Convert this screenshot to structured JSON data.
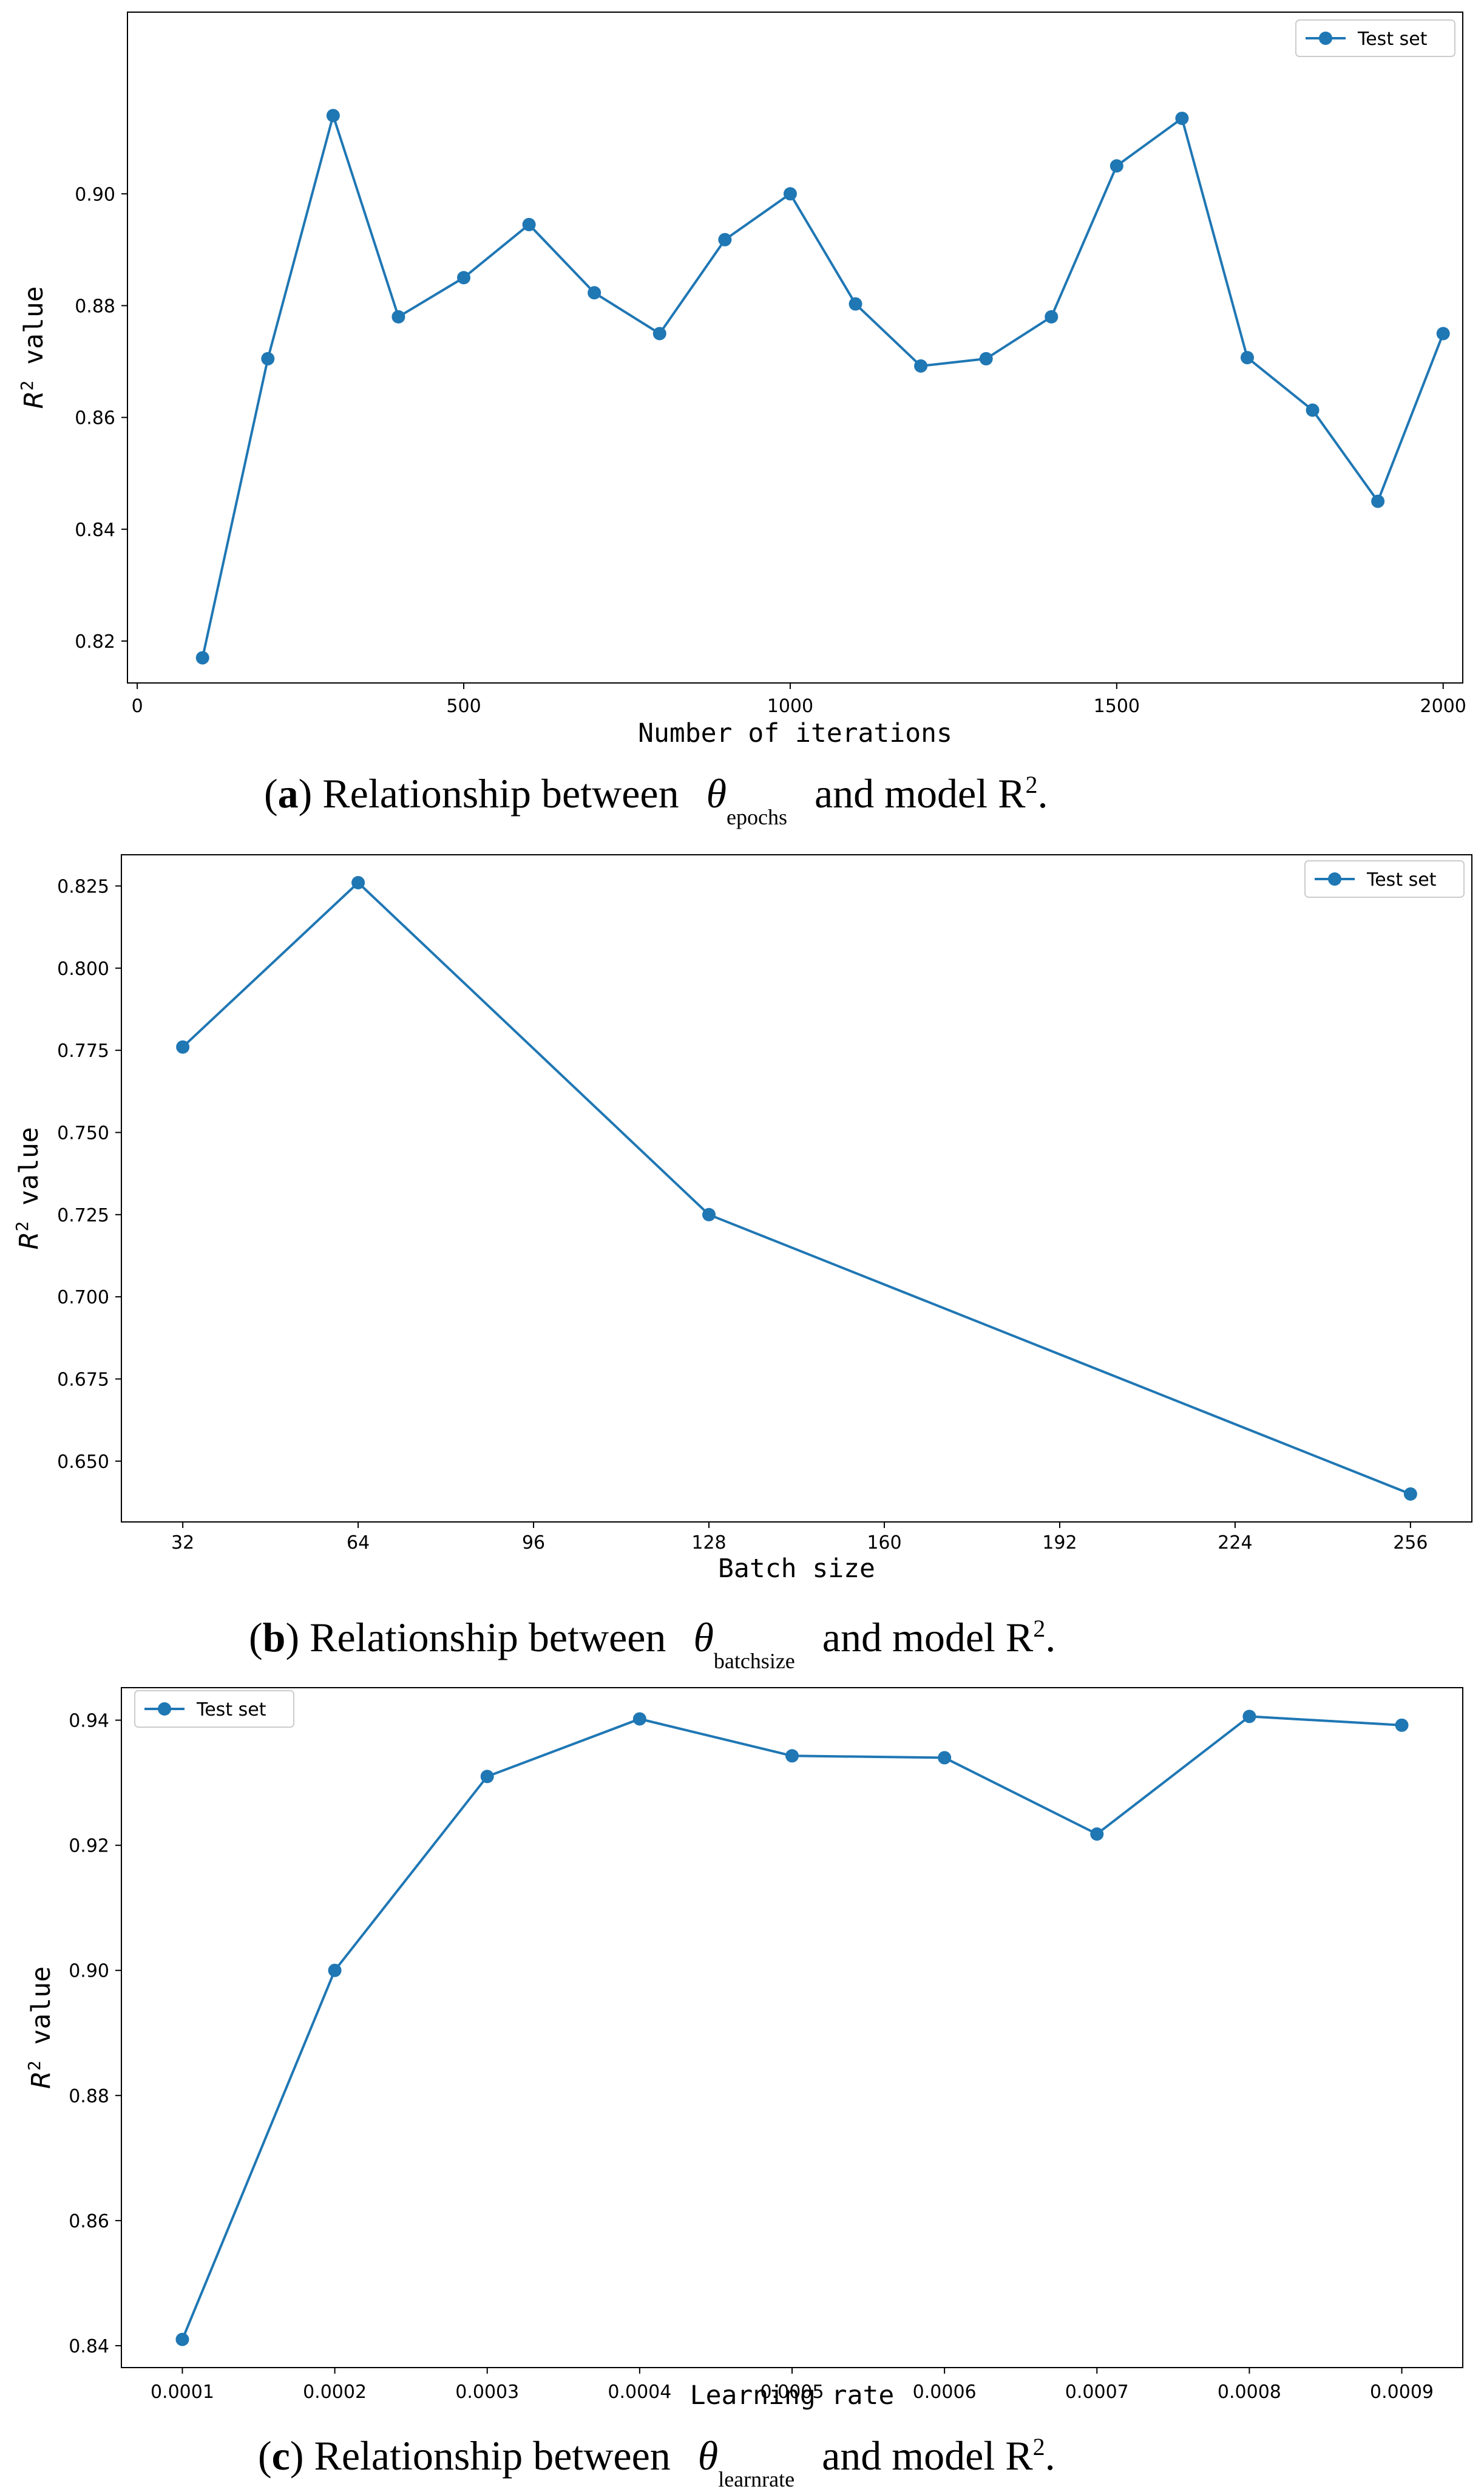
{
  "chart_data": [
    {
      "type": "line",
      "x": [
        100,
        200,
        300,
        400,
        500,
        600,
        700,
        800,
        900,
        1000,
        1100,
        1200,
        1300,
        1400,
        1500,
        1600,
        1700,
        1800,
        1900,
        2000
      ],
      "series": [
        {
          "name": "Test set",
          "values": [
            0.817,
            0.8705,
            0.914,
            0.878,
            0.885,
            0.8945,
            0.8823,
            0.875,
            0.8918,
            0.9,
            0.8803,
            0.8692,
            0.8705,
            0.878,
            0.905,
            0.9135,
            0.8707,
            0.8613,
            0.845,
            0.875
          ],
          "color": "#1f77b4"
        }
      ],
      "xlabel": "Number of iterations",
      "ylabel_base": "R",
      "ylabel_sup": "2",
      "ylabel_rest": " value",
      "xlim": [
        -15,
        2030
      ],
      "ylim": [
        0.8125,
        0.9325
      ],
      "xticks": [
        0,
        500,
        1000,
        1500,
        2000
      ],
      "xtick_labels": [
        "0",
        "500",
        "1000",
        "1500",
        "2000"
      ],
      "yticks": [
        0.82,
        0.84,
        0.86,
        0.88,
        0.9
      ],
      "ytick_labels": [
        "0.82",
        "0.84",
        "0.86",
        "0.88",
        "0.90"
      ],
      "legend": "top-right",
      "grid": false,
      "caption": {
        "open": "(",
        "letter": "a",
        "text_before": ") Relationship between",
        "theta": "θ",
        "subscript": "epochs",
        "text_after": "and model R",
        "sup": "2",
        "end": "."
      }
    },
    {
      "type": "line",
      "x": [
        32,
        64,
        128,
        256
      ],
      "series": [
        {
          "name": "Test set",
          "values": [
            0.776,
            0.826,
            0.725,
            0.64
          ],
          "color": "#1f77b4"
        }
      ],
      "xlabel": "Batch size",
      "ylabel_base": "R",
      "ylabel_sup": "2",
      "ylabel_rest": " value",
      "xlim": [
        20.8,
        267.2
      ],
      "ylim": [
        0.6315,
        0.8345
      ],
      "xticks": [
        32,
        64,
        96,
        128,
        160,
        192,
        224,
        256
      ],
      "xtick_labels": [
        "32",
        "64",
        "96",
        "128",
        "160",
        "192",
        "224",
        "256"
      ],
      "yticks": [
        0.65,
        0.675,
        0.7,
        0.725,
        0.75,
        0.775,
        0.8,
        0.825
      ],
      "ytick_labels": [
        "0.650",
        "0.675",
        "0.700",
        "0.725",
        "0.750",
        "0.775",
        "0.800",
        "0.825"
      ],
      "legend": "top-right",
      "grid": false,
      "caption": {
        "open": "(",
        "letter": "b",
        "text_before": ") Relationship between",
        "theta": "θ",
        "subscript": "batchsize",
        "text_after": "and model R",
        "sup": "2",
        "end": "."
      }
    },
    {
      "type": "line",
      "x": [
        0.0001,
        0.0002,
        0.0003,
        0.0004,
        0.0005,
        0.0006,
        0.0007,
        0.0008,
        0.0009
      ],
      "series": [
        {
          "name": "Test set",
          "values": [
            0.841,
            0.9,
            0.931,
            0.9402,
            0.9343,
            0.934,
            0.9218,
            0.9406,
            0.9392
          ],
          "color": "#1f77b4"
        }
      ],
      "xlabel": "Learning rate",
      "ylabel_base": "R",
      "ylabel_sup": "2",
      "ylabel_rest": " value",
      "xlim": [
        6e-05,
        0.00094
      ],
      "ylim": [
        0.8365,
        0.9452
      ],
      "xticks": [
        0.0001,
        0.0002,
        0.0003,
        0.0004,
        0.0005,
        0.0006,
        0.0007,
        0.0008,
        0.0009
      ],
      "xtick_labels": [
        "0.0001",
        "0.0002",
        "0.0003",
        "0.0004",
        "0.0005",
        "0.0006",
        "0.0007",
        "0.0008",
        "0.0009"
      ],
      "yticks": [
        0.84,
        0.86,
        0.88,
        0.9,
        0.92,
        0.94
      ],
      "ytick_labels": [
        "0.84",
        "0.86",
        "0.88",
        "0.90",
        "0.92",
        "0.94"
      ],
      "legend": "top-left",
      "grid": false,
      "caption": {
        "open": "(",
        "letter": "c",
        "text_before": ") Relationship between",
        "theta": "θ",
        "subscript": "learnrate",
        "text_after": "and model R",
        "sup": "2",
        "end": "."
      }
    }
  ]
}
